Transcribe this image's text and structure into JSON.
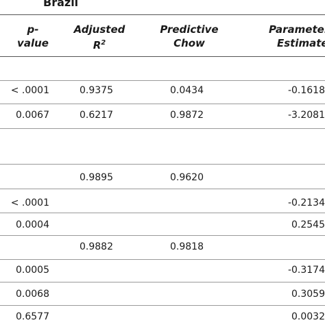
{
  "title": "Brazil",
  "headers": {
    "pvalue_line1": "p-",
    "pvalue_line2": "value",
    "adjr2_line1": "Adjusted",
    "adjr2_line2": "R",
    "adjr2_sup": "2",
    "chow_line1": "Predictive",
    "chow_line2": "Chow",
    "param_line1": "Parameter",
    "param_line2": "Estimate"
  },
  "rows": [
    {
      "p": "< .0001",
      "adj": "0.9375",
      "chow": "0.0434",
      "est": "-0.1618"
    },
    {
      "p": "0.0067",
      "adj": "0.6217",
      "chow": "0.9872",
      "est": "-3.2081"
    },
    {
      "p": "",
      "adj": "0.9895",
      "chow": "0.9620",
      "est": ""
    },
    {
      "p": "< .0001",
      "adj": "",
      "chow": "",
      "est": "-0.2134"
    },
    {
      "p": "0.0004",
      "adj": "",
      "chow": "",
      "est": "0.2545"
    },
    {
      "p": "",
      "adj": "0.9882",
      "chow": "0.9818",
      "est": ""
    },
    {
      "p": "0.0005",
      "adj": "",
      "chow": "",
      "est": "-0.3174"
    },
    {
      "p": "0.0068",
      "adj": "",
      "chow": "",
      "est": "0.3059"
    },
    {
      "p": "0.6577",
      "adj": "",
      "chow": "",
      "est": "0.0032"
    }
  ]
}
